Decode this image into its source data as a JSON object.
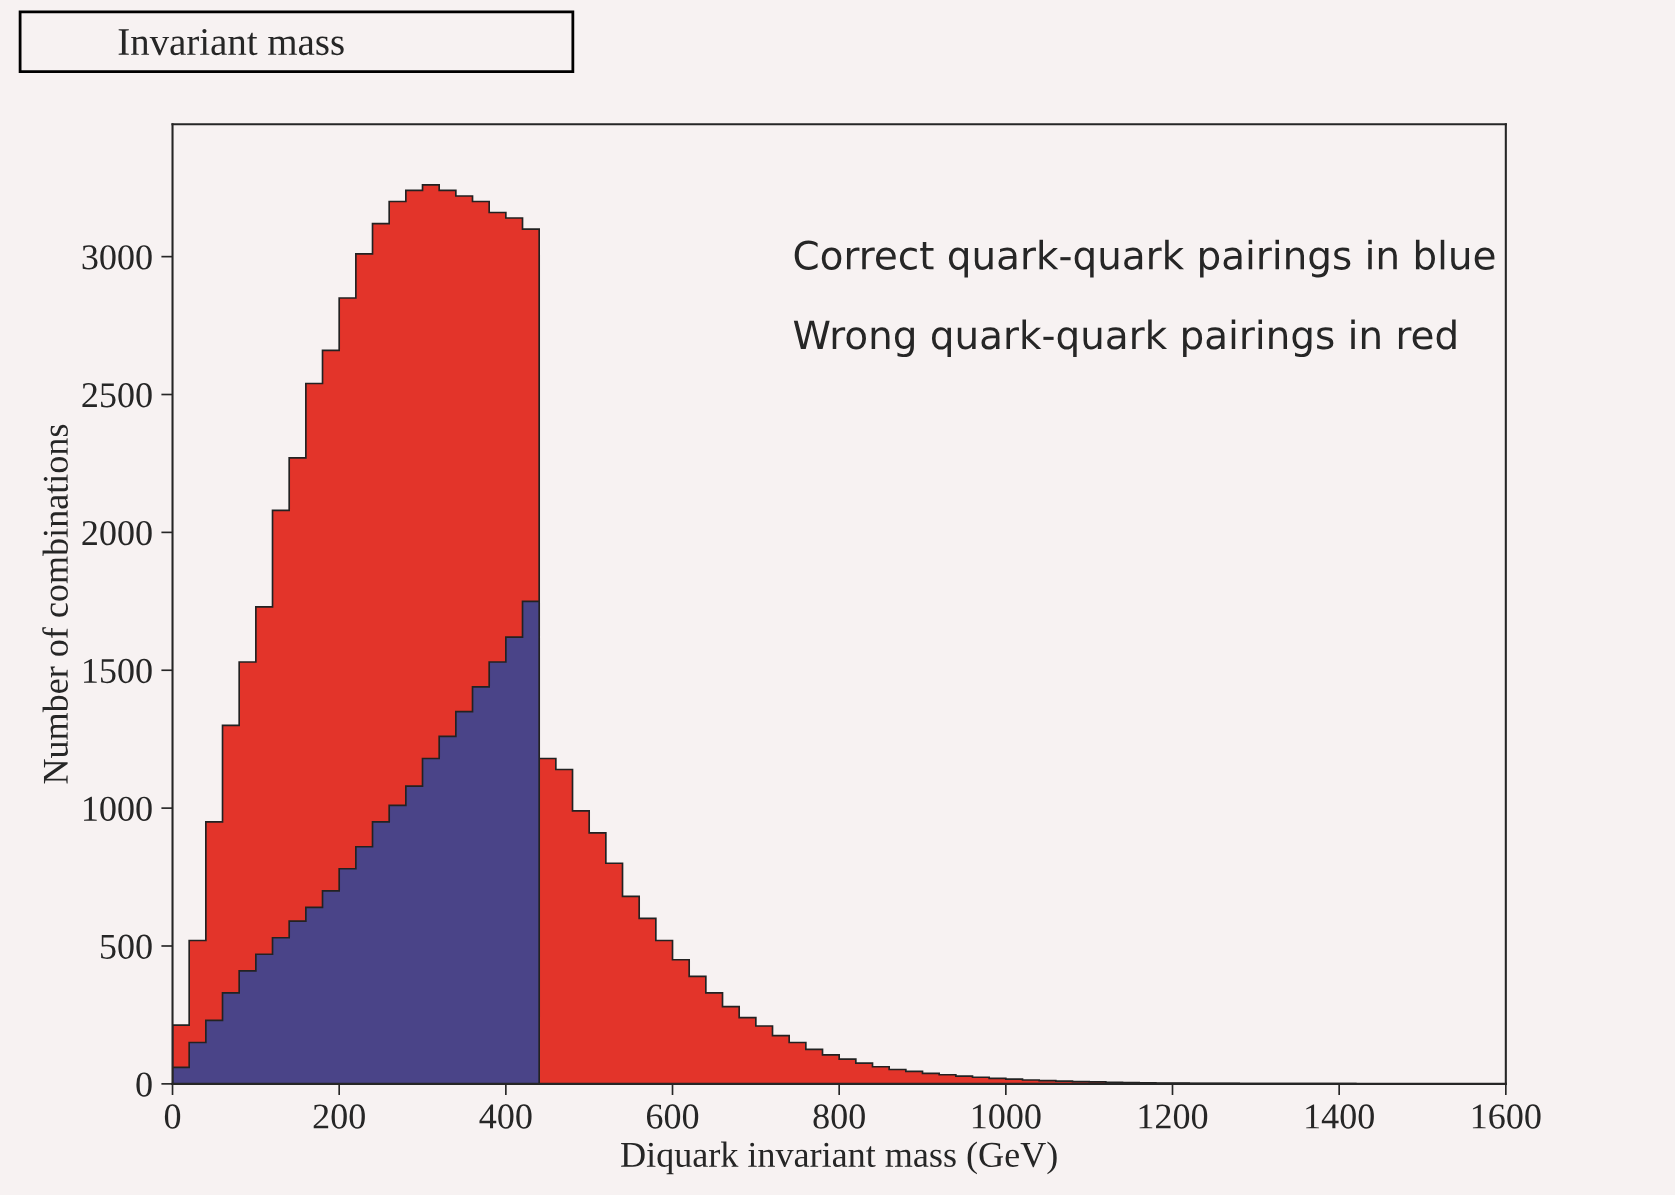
{
  "chart_data": {
    "type": "histogram",
    "title": "Invariant mass",
    "xlabel": "Diquark invariant mass (GeV)",
    "ylabel": "Number of combinations",
    "bins": [
      0,
      20,
      40,
      60,
      80,
      100,
      120,
      140,
      160,
      180,
      200,
      220,
      240,
      260,
      280,
      300,
      320,
      340,
      360,
      380,
      400,
      420,
      440,
      460,
      480,
      500,
      520,
      540,
      560,
      580,
      600,
      620,
      640,
      660,
      680,
      700,
      720,
      740,
      760,
      780,
      800,
      820,
      840,
      860,
      880,
      900,
      920,
      940,
      960,
      980,
      1000,
      1020,
      1040,
      1060,
      1080,
      1100,
      1120,
      1140,
      1160,
      1180,
      1200,
      1220,
      1240,
      1260,
      1280,
      1300,
      1320,
      1340,
      1360,
      1380,
      1400,
      1420,
      1440,
      1460,
      1480,
      1500,
      1520,
      1540,
      1560,
      1580,
      1600
    ],
    "series": [
      {
        "color": "#e3342a",
        "values": [
          213,
          520,
          950,
          1300,
          1530,
          1730,
          2080,
          2270,
          2540,
          2660,
          2850,
          3010,
          3120,
          3200,
          3240,
          3260,
          3240,
          3220,
          3200,
          3160,
          3140,
          3100,
          1180,
          1140,
          990,
          910,
          800,
          680,
          600,
          520,
          450,
          390,
          330,
          280,
          240,
          210,
          175,
          150,
          125,
          105,
          90,
          75,
          62,
          52,
          45,
          38,
          33,
          28,
          24,
          20,
          17,
          14,
          12,
          10,
          8,
          7,
          6,
          5,
          4,
          3,
          3,
          2,
          2,
          2,
          1,
          1,
          1,
          1,
          1,
          1,
          1,
          0,
          0,
          0,
          0,
          0,
          0,
          0,
          0,
          0
        ]
      },
      {
        "color": "#4a4488",
        "values": [
          60,
          150,
          230,
          330,
          410,
          470,
          530,
          590,
          640,
          700,
          780,
          860,
          950,
          1010,
          1080,
          1180,
          1260,
          1350,
          1440,
          1530,
          1620,
          1750,
          0,
          0,
          0,
          0,
          0,
          0,
          0,
          0,
          0,
          0,
          0,
          0,
          0,
          0,
          0,
          0,
          0,
          0,
          0,
          0,
          0,
          0,
          0,
          0,
          0,
          0,
          0,
          0,
          0,
          0,
          0,
          0,
          0,
          0,
          0,
          0,
          0,
          0,
          0,
          0,
          0,
          0,
          0,
          0,
          0,
          0,
          0,
          0,
          0,
          0,
          0,
          0,
          0,
          0,
          0,
          0,
          0,
          0
        ]
      }
    ],
    "xlim": [
      0,
      1600
    ],
    "ylim": [
      0,
      3480
    ],
    "xticks": [
      0,
      200,
      400,
      600,
      800,
      1000,
      1200,
      1400,
      1600
    ],
    "yticks": [
      0,
      500,
      1000,
      1500,
      2000,
      2500,
      3000
    ],
    "annotations": [
      "Correct quark-quark pairings in blue",
      "Wrong quark-quark pairings in red"
    ],
    "grid": false,
    "legend": false
  }
}
